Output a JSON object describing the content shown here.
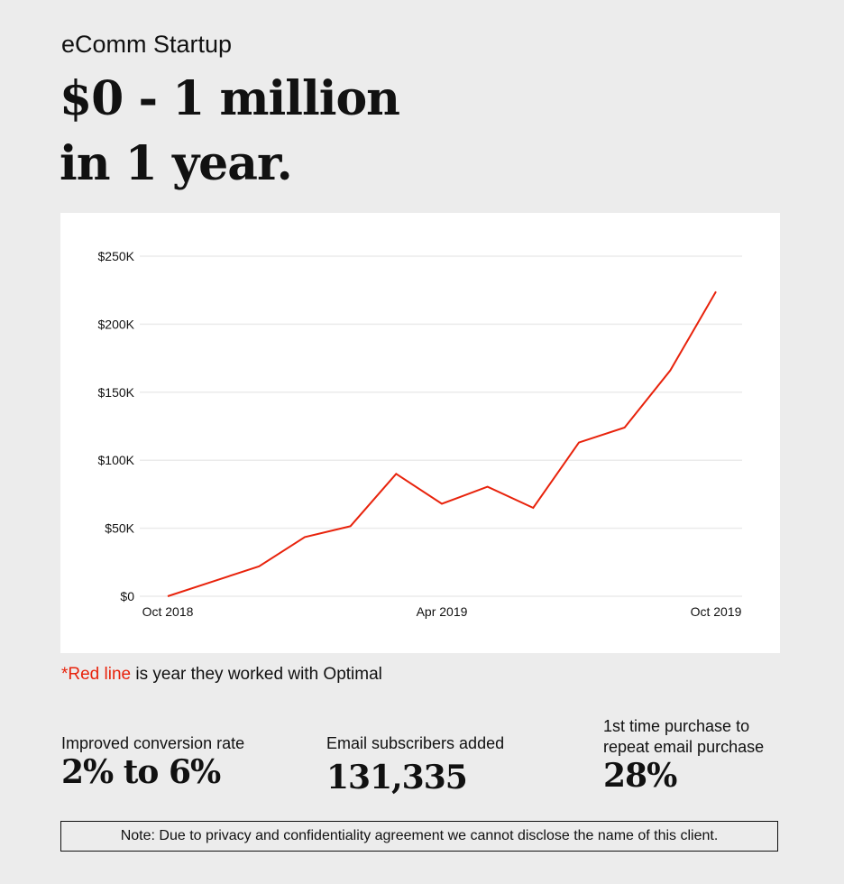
{
  "header": {
    "subtitle": "eComm Startup",
    "title_line1": "$0 - 1 million",
    "title_line2": "in 1 year."
  },
  "chart_data": {
    "type": "line",
    "x": [
      "Oct 2018",
      "Nov 2018",
      "Dec 2018",
      "Jan 2019",
      "Feb 2019",
      "Mar 2019",
      "Apr 2019",
      "May 2019",
      "Jun 2019",
      "Jul 2019",
      "Aug 2019",
      "Sep 2019",
      "Oct 2019"
    ],
    "x_tick_labels": [
      "Oct 2018",
      "Apr 2019",
      "Oct 2019"
    ],
    "values": [
      0,
      11000,
      22000,
      43500,
      51500,
      90000,
      68000,
      80500,
      65000,
      113000,
      124000,
      166000,
      224000
    ],
    "y_tick_labels": [
      "$0",
      "$50K",
      "$100K",
      "$150K",
      "$200K",
      "$250K"
    ],
    "ylim": [
      0,
      250000
    ],
    "grid": true,
    "line_color": "#e8230c"
  },
  "caption": {
    "red_part": "*Red line",
    "rest": " is year they worked with Optimal"
  },
  "stats": [
    {
      "label": "Improved conversion rate",
      "value": "2% to 6%"
    },
    {
      "label": "Email subscribers added",
      "value": "131,335"
    },
    {
      "label_line1": "1st time purchase to",
      "label_line2": "repeat email purchase",
      "value": "28%"
    }
  ],
  "disclaimer": "Note: Due to privacy and confidentiality agreement we cannot disclose the name of this client."
}
